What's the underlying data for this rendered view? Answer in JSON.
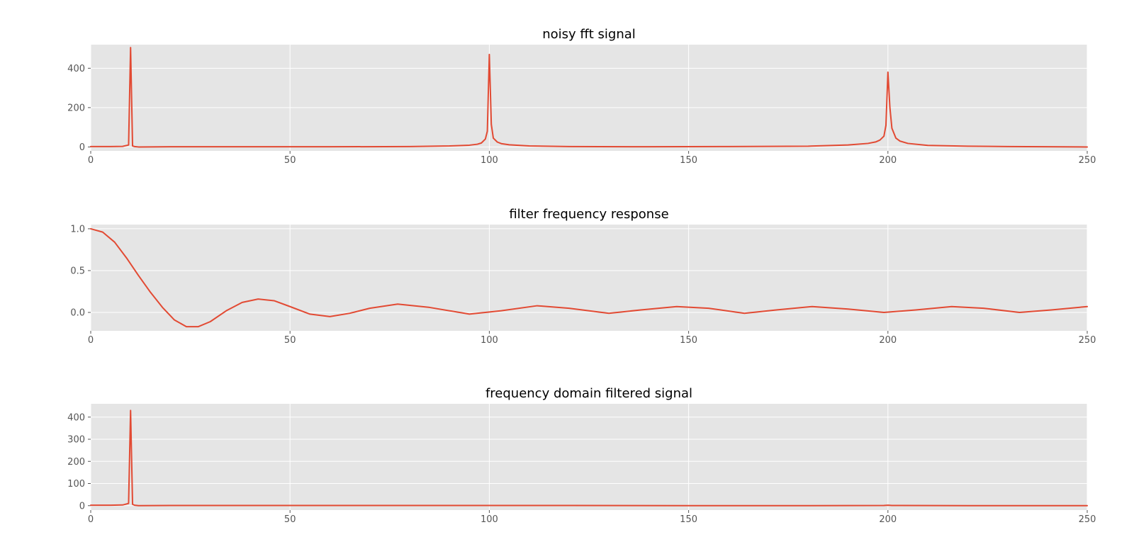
{
  "chart_data": [
    {
      "type": "line",
      "title": "noisy fft signal",
      "xlabel": "",
      "ylabel": "",
      "xlim": [
        0,
        250
      ],
      "ylim": [
        -20,
        520
      ],
      "xticks": [
        0,
        50,
        100,
        150,
        200,
        250
      ],
      "yticks": [
        0,
        200,
        400
      ],
      "xtick_labels": [
        "0",
        "50",
        "100",
        "150",
        "200",
        "250"
      ],
      "ytick_labels": [
        "0",
        "200",
        "400"
      ],
      "grid": true,
      "color": "#e24a33",
      "series": [
        {
          "x": [
            0,
            5,
            8,
            9.5,
            10,
            10.5,
            11,
            12,
            20,
            40,
            60,
            80,
            90,
            95,
            97,
            98,
            99,
            99.5,
            100,
            100.5,
            101,
            102,
            103,
            105,
            110,
            120,
            140,
            160,
            180,
            190,
            195,
            197,
            198,
            199,
            199.5,
            200,
            200.5,
            201,
            202,
            203,
            205,
            210,
            220,
            230,
            240,
            250
          ],
          "values": [
            2,
            2,
            3,
            10,
            505,
            5,
            2,
            0,
            1,
            1,
            1,
            2,
            5,
            9,
            14,
            20,
            40,
            80,
            470,
            115,
            45,
            25,
            17,
            11,
            5,
            2,
            1,
            2,
            4,
            10,
            18,
            26,
            35,
            55,
            110,
            380,
            200,
            95,
            45,
            30,
            18,
            8,
            4,
            2,
            1,
            0
          ]
        }
      ]
    },
    {
      "type": "line",
      "title": "filter frequency response",
      "xlabel": "",
      "ylabel": "",
      "xlim": [
        0,
        250
      ],
      "ylim": [
        -0.22,
        1.05
      ],
      "xticks": [
        0,
        50,
        100,
        150,
        200,
        250
      ],
      "yticks": [
        0.0,
        0.5,
        1.0
      ],
      "xtick_labels": [
        "0",
        "50",
        "100",
        "150",
        "200",
        "250"
      ],
      "ytick_labels": [
        "0.0",
        "0.5",
        "1.0"
      ],
      "grid": true,
      "color": "#e24a33",
      "series": [
        {
          "x": [
            0,
            3,
            6,
            9,
            12,
            15,
            18,
            21,
            24,
            27,
            30,
            34,
            38,
            42,
            46,
            50,
            55,
            60,
            65,
            70,
            77,
            85,
            95,
            103,
            112,
            120,
            130,
            138,
            147,
            155,
            164,
            172,
            181,
            190,
            199,
            207,
            216,
            224,
            233,
            241,
            250
          ],
          "values": [
            1.0,
            0.96,
            0.84,
            0.65,
            0.44,
            0.24,
            0.06,
            -0.09,
            -0.17,
            -0.17,
            -0.11,
            0.02,
            0.12,
            0.16,
            0.14,
            0.07,
            -0.02,
            -0.05,
            -0.01,
            0.05,
            0.1,
            0.06,
            -0.02,
            0.02,
            0.08,
            0.05,
            -0.01,
            0.03,
            0.07,
            0.05,
            -0.01,
            0.03,
            0.07,
            0.04,
            0.0,
            0.03,
            0.07,
            0.05,
            0.0,
            0.03,
            0.07
          ]
        }
      ]
    },
    {
      "type": "line",
      "title": "frequency domain filtered signal",
      "xlabel": "",
      "ylabel": "",
      "xlim": [
        0,
        250
      ],
      "ylim": [
        -20,
        460
      ],
      "xticks": [
        0,
        50,
        100,
        150,
        200,
        250
      ],
      "yticks": [
        0,
        100,
        200,
        300,
        400
      ],
      "xtick_labels": [
        "0",
        "50",
        "100",
        "150",
        "200",
        "250"
      ],
      "ytick_labels": [
        "0",
        "100",
        "200",
        "300",
        "400"
      ],
      "grid": true,
      "color": "#e24a33",
      "series": [
        {
          "x": [
            0,
            5,
            8,
            9.5,
            10,
            10.5,
            11,
            12,
            20,
            40,
            60,
            80,
            100,
            120,
            150,
            180,
            199,
            200,
            201,
            220,
            250
          ],
          "values": [
            2,
            2,
            3,
            10,
            430,
            6,
            2,
            0,
            1,
            1,
            1,
            1,
            1,
            1,
            0,
            0,
            1,
            2,
            1,
            0,
            0
          ]
        }
      ]
    }
  ]
}
